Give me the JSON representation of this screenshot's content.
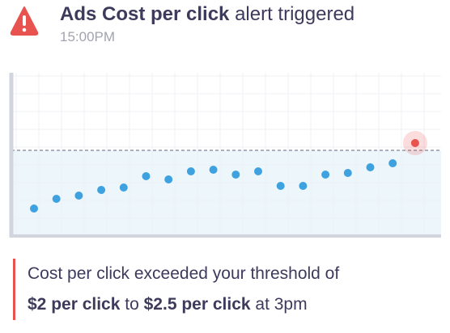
{
  "header": {
    "title_bold": "Ads Cost per click",
    "title_rest": "alert triggered",
    "time": "15:00PM"
  },
  "chart_data": {
    "type": "scatter",
    "values": [
      16,
      22,
      24,
      27.5,
      29,
      36,
      34,
      39,
      40,
      37,
      39,
      30,
      30,
      37,
      38,
      41.5,
      44,
      56.5
    ],
    "color": "#3fa2e0",
    "highlight_color": "#e8534f",
    "highlight_index": 17,
    "threshold": 52,
    "ylim": [
      0,
      100
    ],
    "grid": true
  },
  "message": {
    "line1": "Cost per click exceeded your threshold of",
    "from": "$2 per click",
    "to_word": "to",
    "to": "$2.5 per click",
    "suffix": "at 3pm"
  }
}
